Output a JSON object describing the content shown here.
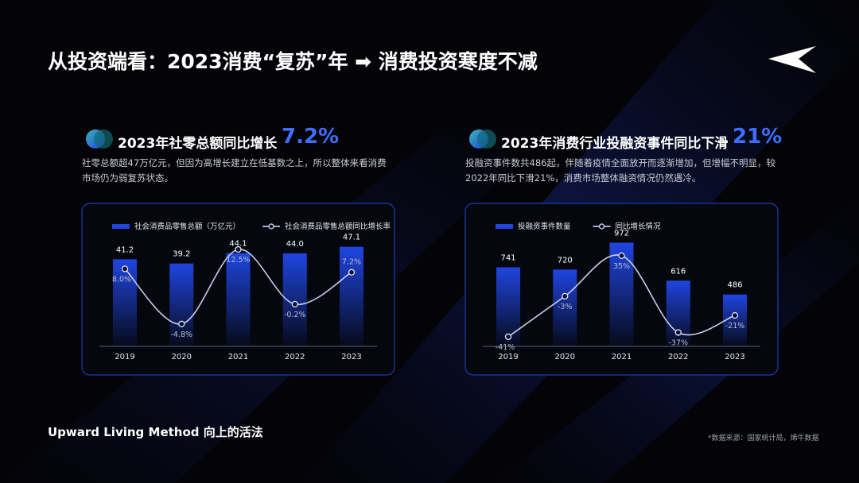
{
  "title": "从投资端看：2023消费“复苏”年 ➡ 消费投资寒度不减",
  "footer": "Upward Living Method 向上的活法",
  "source": "*数据来源：国家统计局，烯牛数据",
  "chart_data": [
    {
      "type": "combo",
      "title": "2023年社零总额同比增长",
      "highlight": "7.2%",
      "subtitle": "社零总额超47万亿元，但因为高增长建立在低基数之上，所以整体来看消费市场仍为弱复苏状态。",
      "categories": [
        "2019",
        "2020",
        "2021",
        "2022",
        "2023"
      ],
      "series": [
        {
          "name": "社会消费品零售总额（万亿元）",
          "type": "bar",
          "color": "#1f45e0",
          "values": [
            41.2,
            39.2,
            44.1,
            44.0,
            47.1
          ],
          "value_labels": [
            "41.2",
            "39.2",
            "44.1",
            "44.0",
            "47.1"
          ]
        },
        {
          "name": "社会消费品零售总额同比增长率",
          "type": "line",
          "axis": "y2",
          "color": "#dfe3ff",
          "values": [
            8.0,
            -4.8,
            12.5,
            -0.2,
            7.2
          ],
          "value_labels": [
            "8.0%",
            "-4.8%",
            "12.5%",
            "-0.2%",
            "7.2%"
          ]
        }
      ],
      "ylim": [
        0,
        53
      ],
      "y2lim": [
        -10,
        16
      ]
    },
    {
      "type": "combo",
      "title": "2023年消费行业投融资事件同比下滑",
      "highlight": "21%",
      "subtitle": "投融资事件数共486起，伴随着疫情全面放开而逐渐增加，但增幅不明显，较2022年同比下滑21%，消费市场整体融资情况仍然遇冷。",
      "categories": [
        "2019",
        "2020",
        "2021",
        "2022",
        "2023"
      ],
      "series": [
        {
          "name": "投融资事件数量",
          "type": "bar",
          "color": "#1f45e0",
          "values": [
            741,
            720,
            972,
            616,
            486
          ]
        },
        {
          "name": "同比增长情况",
          "type": "line",
          "axis": "y2",
          "color": "#dfe3ff",
          "values": [
            -41,
            -3,
            35,
            -37,
            -21
          ],
          "value_labels": [
            "-41%",
            "-3%",
            "35%",
            "-37%",
            "-21%"
          ]
        }
      ],
      "ylim": [
        0,
        1050
      ],
      "y2lim": [
        -50,
        55
      ]
    }
  ]
}
